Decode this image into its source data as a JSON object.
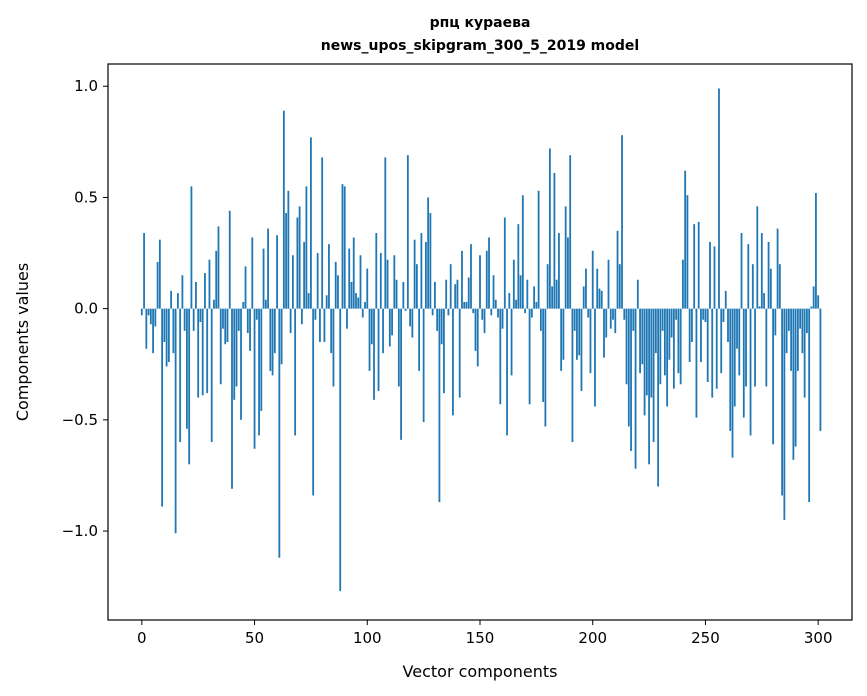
{
  "chart_data": {
    "type": "bar",
    "title": "рпц кураева",
    "subtitle": "news_upos_skipgram_300_5_2019 model",
    "xlabel": "Vector components",
    "ylabel": "Components values",
    "xlim": [
      -15,
      315
    ],
    "ylim": [
      -1.4,
      1.1
    ],
    "xticks": [
      0,
      50,
      100,
      150,
      200,
      250,
      300
    ],
    "xtick_labels": [
      "0",
      "50",
      "100",
      "150",
      "200",
      "250",
      "300"
    ],
    "yticks": [
      -1.0,
      -0.5,
      0.0,
      0.5,
      1.0
    ],
    "ytick_labels": [
      "−1.0",
      "−0.5",
      "0.0",
      "0.5",
      "1.0"
    ],
    "bar_color": "#1f77b4",
    "values": [
      -0.03,
      0.34,
      -0.18,
      -0.03,
      -0.07,
      -0.2,
      -0.08,
      0.21,
      0.31,
      -0.89,
      -0.15,
      -0.26,
      -0.24,
      0.08,
      -0.2,
      -1.01,
      0.07,
      -0.6,
      0.15,
      -0.1,
      -0.54,
      -0.7,
      0.55,
      -0.1,
      0.12,
      -0.4,
      -0.06,
      -0.39,
      0.16,
      -0.38,
      0.22,
      -0.6,
      0.04,
      0.26,
      0.37,
      -0.34,
      -0.09,
      -0.16,
      -0.15,
      0.44,
      -0.81,
      -0.41,
      -0.35,
      -0.1,
      -0.5,
      0.03,
      0.19,
      -0.11,
      -0.19,
      0.32,
      -0.63,
      -0.05,
      -0.57,
      -0.46,
      0.27,
      0.04,
      0.36,
      -0.28,
      -0.3,
      -0.2,
      0.33,
      -1.12,
      -0.25,
      0.89,
      0.43,
      0.53,
      -0.11,
      0.24,
      -0.57,
      0.41,
      0.46,
      -0.07,
      0.3,
      0.55,
      0.07,
      0.77,
      -0.84,
      -0.05,
      0.25,
      -0.15,
      0.68,
      -0.15,
      0.06,
      0.29,
      -0.2,
      -0.35,
      0.21,
      0.15,
      -1.27,
      0.56,
      0.55,
      -0.09,
      0.27,
      0.12,
      0.32,
      0.07,
      0.05,
      0.24,
      -0.04,
      0.03,
      0.18,
      -0.28,
      -0.16,
      -0.41,
      0.34,
      -0.37,
      0.25,
      -0.2,
      0.68,
      0.22,
      -0.17,
      -0.12,
      0.24,
      0.13,
      -0.35,
      -0.59,
      0.12,
      -0.01,
      0.69,
      -0.08,
      -0.13,
      0.31,
      0.2,
      -0.28,
      0.34,
      -0.51,
      0.3,
      0.5,
      0.43,
      -0.03,
      0.12,
      -0.1,
      -0.87,
      -0.16,
      -0.38,
      0.13,
      -0.03,
      0.2,
      -0.48,
      0.11,
      0.13,
      -0.4,
      0.26,
      0.03,
      0.03,
      0.14,
      0.29,
      -0.02,
      -0.19,
      -0.26,
      0.24,
      -0.05,
      -0.11,
      0.26,
      0.32,
      -0.03,
      0.15,
      0.04,
      -0.04,
      -0.43,
      -0.09,
      0.41,
      -0.57,
      0.07,
      -0.3,
      0.22,
      0.04,
      0.38,
      0.15,
      0.51,
      -0.02,
      0.13,
      -0.43,
      -0.04,
      0.1,
      0.03,
      0.53,
      -0.1,
      -0.42,
      -0.53,
      0.2,
      0.72,
      0.1,
      0.61,
      0.13,
      0.34,
      -0.28,
      -0.23,
      0.46,
      0.32,
      0.69,
      -0.6,
      -0.1,
      -0.23,
      -0.21,
      -0.37,
      0.1,
      0.18,
      -0.04,
      -0.29,
      0.26,
      -0.44,
      0.18,
      0.09,
      0.08,
      -0.22,
      -0.13,
      0.22,
      -0.09,
      -0.05,
      -0.11,
      0.35,
      0.2,
      0.78,
      -0.05,
      -0.34,
      -0.53,
      -0.64,
      -0.1,
      -0.72,
      0.13,
      -0.29,
      -0.25,
      -0.48,
      -0.39,
      -0.7,
      -0.4,
      -0.6,
      -0.2,
      -0.8,
      -0.34,
      -0.1,
      -0.3,
      -0.44,
      -0.23,
      -0.13,
      -0.36,
      -0.05,
      -0.29,
      -0.34,
      0.22,
      0.62,
      0.51,
      -0.24,
      -0.15,
      0.38,
      -0.49,
      0.39,
      -0.24,
      -0.05,
      -0.06,
      -0.33,
      0.3,
      -0.4,
      0.28,
      -0.36,
      0.99,
      -0.29,
      -0.06,
      0.08,
      -0.15,
      -0.55,
      -0.67,
      -0.44,
      -0.18,
      -0.3,
      0.34,
      -0.49,
      -0.35,
      0.29,
      -0.57,
      0.2,
      -0.35,
      0.46,
      0.01,
      0.34,
      0.07,
      -0.35,
      0.3,
      0.18,
      -0.61,
      -0.12,
      0.36,
      0.2,
      -0.84,
      -0.95,
      -0.2,
      -0.1,
      -0.28,
      -0.68,
      -0.62,
      -0.28,
      -0.09,
      -0.2,
      -0.4,
      -0.11,
      -0.87,
      0.01,
      0.1,
      0.52,
      0.06,
      -0.55
    ]
  }
}
